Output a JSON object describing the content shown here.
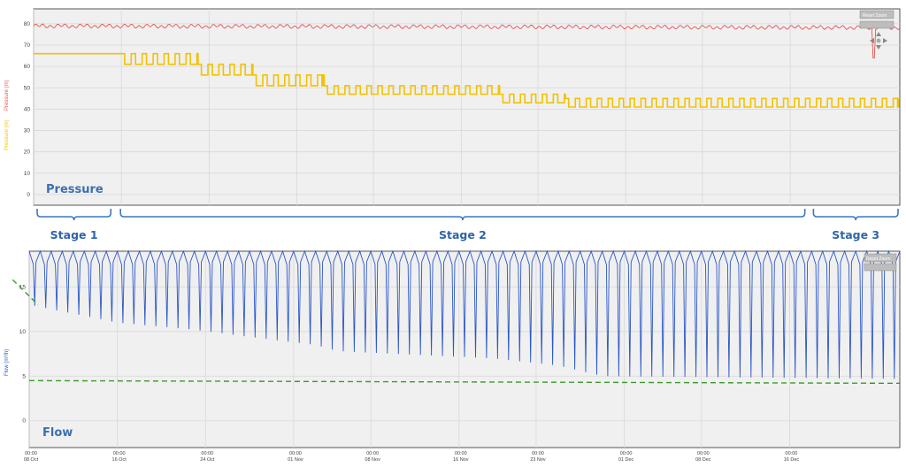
{
  "chart_data": [
    {
      "type": "line",
      "title": "Pressure",
      "ylabel_series": [
        {
          "text": "Pressure (m)",
          "color": "#f2c200"
        },
        {
          "text": "Pressure (m)",
          "color": "#e55353"
        }
      ],
      "yticks": [
        "0",
        "10",
        "20",
        "30",
        "40",
        "50",
        "60",
        "70",
        "80"
      ],
      "ylim": [
        -5,
        87
      ],
      "xlim": [
        0,
        79
      ],
      "x_unit": "days since 08 Oct",
      "reset_zoom_label": "Reset Zoom",
      "series": [
        {
          "color": "#e55353",
          "level": 79,
          "note": "red pressure trace, nearly flat with small oscillation, single dip near end",
          "dip": {
            "x": 76.6,
            "y": 64
          }
        },
        {
          "color": "#f2c200",
          "segments": [
            {
              "x0": 0,
              "x1": 8,
              "high": 66,
              "low": 66
            },
            {
              "x0": 8,
              "x1": 15,
              "high": 66,
              "low": 61
            },
            {
              "x0": 15,
              "x1": 20,
              "high": 61,
              "low": 56
            },
            {
              "x0": 20,
              "x1": 26.5,
              "high": 56,
              "low": 51
            },
            {
              "x0": 26.5,
              "x1": 42.5,
              "high": 51,
              "low": 47
            },
            {
              "x0": 42.5,
              "x1": 48.5,
              "high": 47,
              "low": 43
            },
            {
              "x0": 48.5,
              "x1": 79,
              "high": 45,
              "low": 41
            }
          ]
        }
      ]
    },
    {
      "type": "line",
      "title": "Flow",
      "ylabel": "Flow (m³/h)",
      "yticks": [
        "0",
        "5",
        "10",
        "15"
      ],
      "ylim": [
        -3,
        19
      ],
      "xlim": [
        0,
        79
      ],
      "reset_zoom_label": "Reset Zoom",
      "series": [
        {
          "color": "#2b57c8",
          "top": 19,
          "daily_min_points": [
            {
              "x": 0,
              "y": 13.0
            },
            {
              "x": 8,
              "y": 11.0
            },
            {
              "x": 15,
              "y": 10.2
            },
            {
              "x": 20,
              "y": 9.4
            },
            {
              "x": 26,
              "y": 8.5
            },
            {
              "x": 28,
              "y": 7.8
            },
            {
              "x": 42,
              "y": 7.0
            },
            {
              "x": 48,
              "y": 6.2
            },
            {
              "x": 52,
              "y": 5.0
            },
            {
              "x": 79,
              "y": 4.7
            }
          ]
        },
        {
          "color": "#3a9a2a",
          "dashed": true,
          "points": [
            {
              "x": 0,
              "y": 4.5
            },
            {
              "x": 79,
              "y": 4.2
            }
          ]
        },
        {
          "color": "#3a9a2a",
          "dashed": true,
          "points": [
            {
              "x": -1.5,
              "y": 15.8
            },
            {
              "x": 0.8,
              "y": 13.0
            }
          ]
        }
      ]
    }
  ],
  "x_ticks": [
    {
      "top": "00:00",
      "bottom": "08 Oct",
      "x": 0
    },
    {
      "top": "00:00",
      "bottom": "16 Oct",
      "x": 8
    },
    {
      "top": "00:00",
      "bottom": "24 Oct",
      "x": 16
    },
    {
      "top": "00:00",
      "bottom": "01 Nov",
      "x": 24
    },
    {
      "top": "00:00",
      "bottom": "08 Nov",
      "x": 31
    },
    {
      "top": "00:00",
      "bottom": "16 Nov",
      "x": 39
    },
    {
      "top": "00:00",
      "bottom": "23 Nov",
      "x": 46
    },
    {
      "top": "00:00",
      "bottom": "01 Dec",
      "x": 54
    },
    {
      "top": "00:00",
      "bottom": "08 Dec",
      "x": 61
    },
    {
      "top": "00:00",
      "bottom": "16 Dec",
      "x": 69
    }
  ],
  "stages": [
    {
      "label": "Stage 1",
      "x0": 0,
      "x1": 7.2
    },
    {
      "label": "Stage 2",
      "x0": 7.6,
      "x1": 70.5
    },
    {
      "label": "Stage 3",
      "x0": 70.8,
      "x1": 79
    }
  ]
}
